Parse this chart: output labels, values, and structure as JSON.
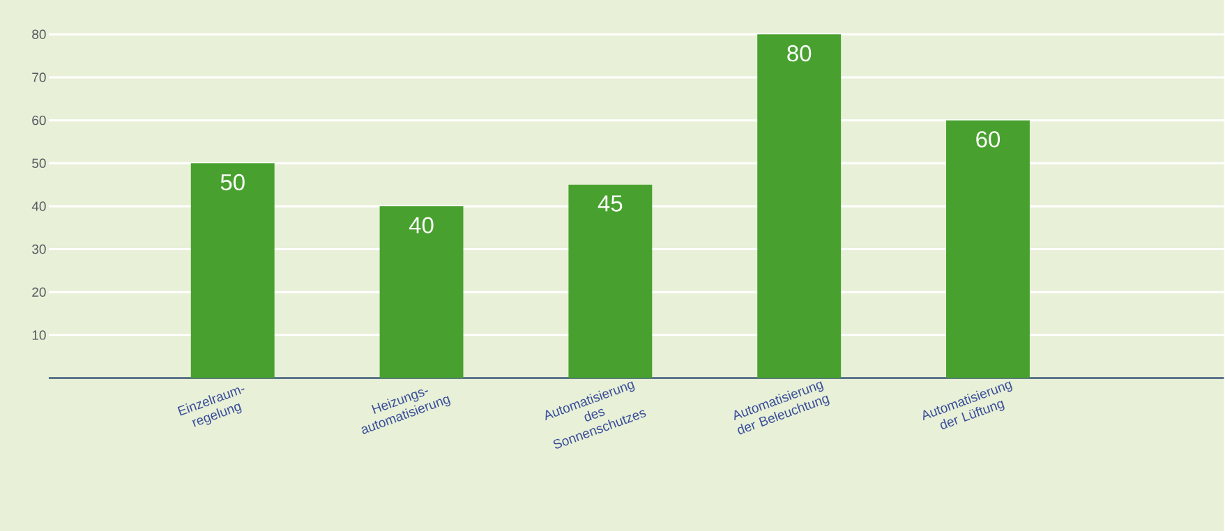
{
  "chart_data": {
    "type": "bar",
    "categories": [
      "Einzelraum- regelung",
      "Heizungs- automatisierung",
      "Automatisierung des Sonnenschutzes",
      "Automatisierung der Beleuchtung",
      "Automatisierung der Lüftung"
    ],
    "values": [
      50,
      40,
      45,
      80,
      60
    ],
    "color": "#48a12f",
    "ylim": [
      0,
      80
    ],
    "yticks": [
      10,
      20,
      30,
      40,
      50,
      60,
      70,
      80
    ],
    "grid": "y",
    "data_labels": true
  }
}
